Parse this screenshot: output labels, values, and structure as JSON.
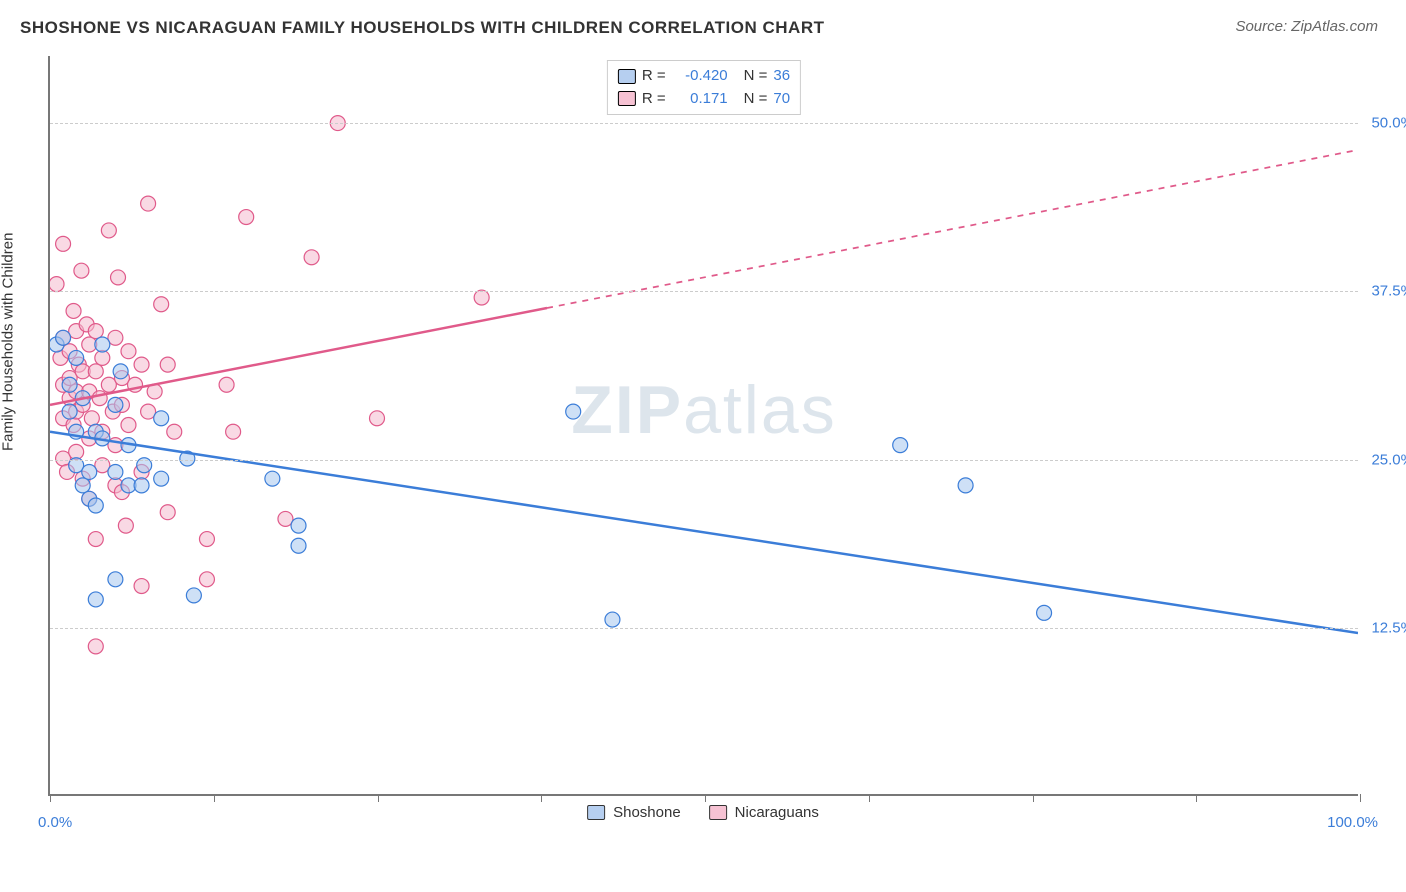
{
  "header": {
    "title": "SHOSHONE VS NICARAGUAN FAMILY HOUSEHOLDS WITH CHILDREN CORRELATION CHART",
    "source": "Source: ZipAtlas.com"
  },
  "chart": {
    "type": "scatter",
    "ylabel": "Family Households with Children",
    "watermark": {
      "bold": "ZIP",
      "rest": "atlas"
    },
    "xlim": [
      0,
      100
    ],
    "ylim": [
      0,
      55
    ],
    "xtick_positions": [
      0,
      12.5,
      25,
      37.5,
      50,
      62.5,
      75,
      87.5,
      100
    ],
    "xaxis_labels": {
      "left": "0.0%",
      "right": "100.0%"
    },
    "grid_color": "#cccccc",
    "axis_color": "#777777",
    "background_color": "#ffffff",
    "ytick_lines": [
      {
        "y": 12.5,
        "label": "12.5%"
      },
      {
        "y": 25.0,
        "label": "25.0%"
      },
      {
        "y": 37.5,
        "label": "37.5%"
      },
      {
        "y": 50.0,
        "label": "50.0%"
      }
    ],
    "marker_radius": 7.5,
    "marker_opacity": 0.55,
    "series": [
      {
        "name": "Shoshone",
        "color_fill": "#a6c6ef",
        "color_stroke": "#3b7dd8",
        "legend_stats": {
          "R": "-0.420",
          "N": "36"
        },
        "trend": {
          "x1": 0,
          "y1": 27.0,
          "x2": 100,
          "y2": 12.0,
          "solid_to_x": 100,
          "stroke_width": 2.5
        },
        "points": [
          [
            0.5,
            33.5
          ],
          [
            1.0,
            34.0
          ],
          [
            1.5,
            28.5
          ],
          [
            1.5,
            30.5
          ],
          [
            2.0,
            27.0
          ],
          [
            2.0,
            32.5
          ],
          [
            2.0,
            24.5
          ],
          [
            2.5,
            29.5
          ],
          [
            2.5,
            23.0
          ],
          [
            3.0,
            24.0
          ],
          [
            3.0,
            22.0
          ],
          [
            3.5,
            21.5
          ],
          [
            3.5,
            27.0
          ],
          [
            3.5,
            14.5
          ],
          [
            4.0,
            26.5
          ],
          [
            4.0,
            33.5
          ],
          [
            5.0,
            24.0
          ],
          [
            5.0,
            29.0
          ],
          [
            5.0,
            16.0
          ],
          [
            5.4,
            31.5
          ],
          [
            6.0,
            23.0
          ],
          [
            6.0,
            26.0
          ],
          [
            7.0,
            23.0
          ],
          [
            7.2,
            24.5
          ],
          [
            8.5,
            28.0
          ],
          [
            8.5,
            23.5
          ],
          [
            10.5,
            25.0
          ],
          [
            11.0,
            14.8
          ],
          [
            17.0,
            23.5
          ],
          [
            19.0,
            18.5
          ],
          [
            19.0,
            20.0
          ],
          [
            40.0,
            28.5
          ],
          [
            43.0,
            13.0
          ],
          [
            65.0,
            26.0
          ],
          [
            70.0,
            23.0
          ],
          [
            76.0,
            13.5
          ]
        ]
      },
      {
        "name": "Nicaraguans",
        "color_fill": "#f4b9ce",
        "color_stroke": "#e05a8a",
        "legend_stats": {
          "R": "0.171",
          "N": "70"
        },
        "trend": {
          "x1": 0,
          "y1": 29.0,
          "x2": 100,
          "y2": 48.0,
          "solid_to_x": 38,
          "stroke_width": 2.5
        },
        "points": [
          [
            0.5,
            38.0
          ],
          [
            0.8,
            32.5
          ],
          [
            1.0,
            28.0
          ],
          [
            1.0,
            34.0
          ],
          [
            1.0,
            30.5
          ],
          [
            1.0,
            25.0
          ],
          [
            1.0,
            41.0
          ],
          [
            1.3,
            24.0
          ],
          [
            1.5,
            31.0
          ],
          [
            1.5,
            29.5
          ],
          [
            1.5,
            33.0
          ],
          [
            1.8,
            36.0
          ],
          [
            1.8,
            27.5
          ],
          [
            2.0,
            34.5
          ],
          [
            2.0,
            30.0
          ],
          [
            2.0,
            25.5
          ],
          [
            2.0,
            28.5
          ],
          [
            2.2,
            32.0
          ],
          [
            2.4,
            39.0
          ],
          [
            2.5,
            31.5
          ],
          [
            2.5,
            29.0
          ],
          [
            2.5,
            23.5
          ],
          [
            2.8,
            35.0
          ],
          [
            3.0,
            30.0
          ],
          [
            3.0,
            26.5
          ],
          [
            3.0,
            33.5
          ],
          [
            3.0,
            22.0
          ],
          [
            3.2,
            28.0
          ],
          [
            3.5,
            31.5
          ],
          [
            3.5,
            34.5
          ],
          [
            3.5,
            19.0
          ],
          [
            3.5,
            11.0
          ],
          [
            3.8,
            29.5
          ],
          [
            4.0,
            24.5
          ],
          [
            4.0,
            27.0
          ],
          [
            4.0,
            32.5
          ],
          [
            4.5,
            30.5
          ],
          [
            4.5,
            42.0
          ],
          [
            4.8,
            28.5
          ],
          [
            5.0,
            23.0
          ],
          [
            5.0,
            34.0
          ],
          [
            5.0,
            26.0
          ],
          [
            5.2,
            38.5
          ],
          [
            5.5,
            29.0
          ],
          [
            5.5,
            22.5
          ],
          [
            5.5,
            31.0
          ],
          [
            5.8,
            20.0
          ],
          [
            6.0,
            27.5
          ],
          [
            6.0,
            33.0
          ],
          [
            6.5,
            30.5
          ],
          [
            7.0,
            32.0
          ],
          [
            7.0,
            15.5
          ],
          [
            7.0,
            24.0
          ],
          [
            7.5,
            28.5
          ],
          [
            7.5,
            44.0
          ],
          [
            8.0,
            30.0
          ],
          [
            8.5,
            36.5
          ],
          [
            9.0,
            21.0
          ],
          [
            9.0,
            32.0
          ],
          [
            9.5,
            27.0
          ],
          [
            12.0,
            16.0
          ],
          [
            12.0,
            19.0
          ],
          [
            13.5,
            30.5
          ],
          [
            14.0,
            27.0
          ],
          [
            15.0,
            43.0
          ],
          [
            18.0,
            20.5
          ],
          [
            20.0,
            40.0
          ],
          [
            22.0,
            50.0
          ],
          [
            25.0,
            28.0
          ],
          [
            33.0,
            37.0
          ]
        ]
      }
    ],
    "legend_bottom": [
      {
        "swatch": "blue",
        "label": "Shoshone"
      },
      {
        "swatch": "pink",
        "label": "Nicaraguans"
      }
    ]
  }
}
